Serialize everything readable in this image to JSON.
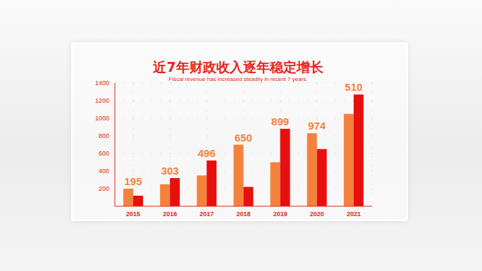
{
  "chart_data": {
    "type": "bar",
    "title": "近7年财政收入逐年稳定增长",
    "subtitle": "Fiscal revenue has increased steadily in recent 7 years.",
    "categories": [
      "2015",
      "2016",
      "2017",
      "2018",
      "2019",
      "2020",
      "2021"
    ],
    "series": [
      {
        "color": "#f5823c",
        "values": [
          200,
          250,
          350,
          700,
          500,
          830,
          1050
        ]
      },
      {
        "color": "#e8100e",
        "values": [
          120,
          320,
          520,
          220,
          880,
          650,
          1270
        ]
      }
    ],
    "annotations": [
      "195",
      "303",
      "496",
      "650",
      "899",
      "974",
      "510"
    ],
    "ylim": [
      0,
      1400
    ],
    "yticks": [
      200,
      400,
      600,
      800,
      1000,
      1200,
      1400
    ],
    "grid": true
  }
}
